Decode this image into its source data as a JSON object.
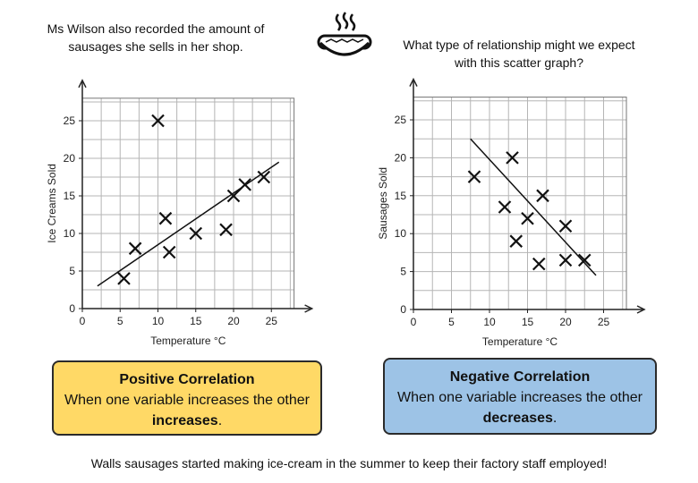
{
  "intro_text": "Ms Wilson also recorded the amount of sausages she sells in her shop.",
  "question_text": "What type of relationship might we expect with this scatter graph?",
  "icon": "hotdog-icon",
  "positive_box": {
    "title": "Positive Correlation",
    "text_before": "When one variable increases the other",
    "keyword": "increases",
    "text_after": ".",
    "color": "#ffd966"
  },
  "negative_box": {
    "title": "Negative Correlation",
    "text_before": "When one variable increases the other",
    "keyword": "decreases",
    "text_after": ".",
    "color": "#9dc3e6"
  },
  "footer_text": "Walls sausages started making ice-cream in the summer to keep their factory staff employed!",
  "chart_data": [
    {
      "type": "scatter",
      "title": "",
      "xlabel": "Temperature °C",
      "ylabel": "Ice Creams Sold",
      "xlim": [
        0,
        28
      ],
      "ylim": [
        0,
        28
      ],
      "xticks": [
        0,
        5,
        10,
        15,
        20,
        25
      ],
      "yticks": [
        0,
        5,
        10,
        15,
        20,
        25
      ],
      "x": [
        5.5,
        7,
        10,
        11,
        11.5,
        15,
        19,
        20,
        21.5,
        24
      ],
      "y": [
        4,
        8,
        25,
        12,
        7.5,
        10,
        10.5,
        15,
        16.5,
        17.5
      ],
      "trend_line": [
        [
          2,
          3
        ],
        [
          26,
          19.5
        ]
      ]
    },
    {
      "type": "scatter",
      "title": "",
      "xlabel": "Temperature °C",
      "ylabel": "Sausages Sold",
      "xlim": [
        0,
        28
      ],
      "ylim": [
        0,
        28
      ],
      "xticks": [
        0,
        5,
        10,
        15,
        20,
        25
      ],
      "yticks": [
        0,
        5,
        10,
        15,
        20,
        25
      ],
      "x": [
        8,
        12,
        13,
        13.5,
        15,
        16.5,
        17,
        20,
        20,
        22.5
      ],
      "y": [
        17.5,
        13.5,
        20,
        9,
        12,
        6,
        15,
        11,
        6.5,
        6.5
      ],
      "trend_line": [
        [
          7.5,
          22.5
        ],
        [
          24,
          4.5
        ]
      ]
    }
  ]
}
